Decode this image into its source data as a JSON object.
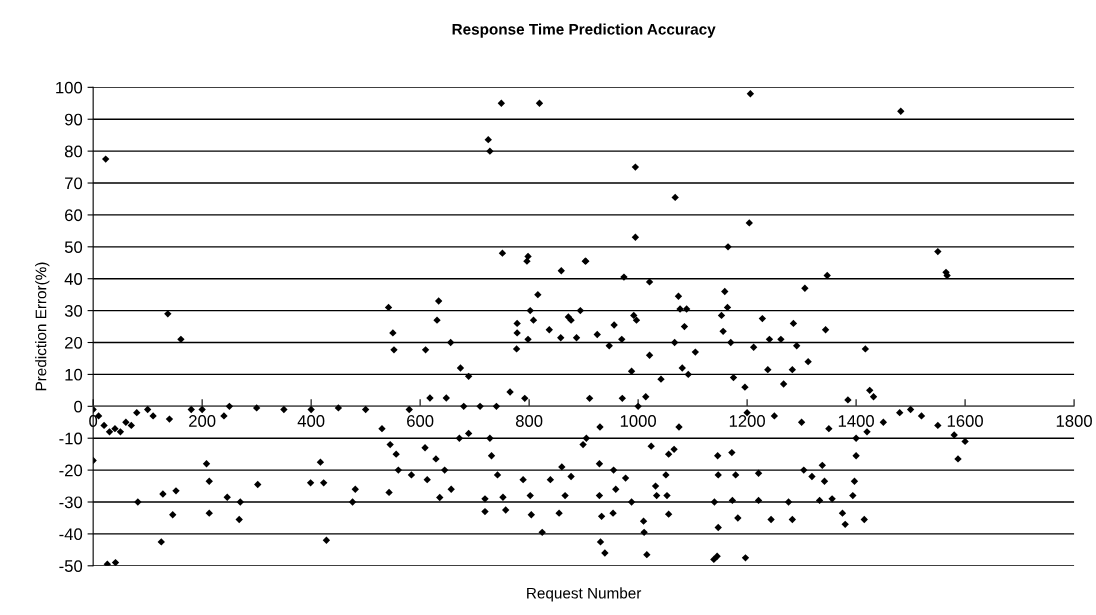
{
  "chart_data": {
    "type": "scatter",
    "title": "Response Time Prediction Accuracy",
    "xlabel": "Request Number",
    "ylabel": "Prediction Error(%)",
    "x": [
      0,
      0,
      10,
      20,
      23,
      26,
      30,
      40,
      41,
      50,
      60,
      70,
      80,
      82,
      100,
      110,
      125,
      128,
      137,
      140,
      146,
      152,
      161,
      180,
      200,
      208,
      213,
      213,
      240,
      246,
      250,
      268,
      270,
      300,
      302,
      350,
      399,
      400,
      417,
      423,
      428,
      450,
      476,
      481,
      500,
      530,
      542,
      543,
      545,
      550,
      552,
      556,
      560,
      580,
      584,
      609,
      610,
      613,
      618,
      629,
      631,
      634,
      636,
      645,
      648,
      656,
      657,
      672,
      674,
      680,
      689,
      689,
      710,
      719,
      719,
      725,
      728,
      728,
      731,
      740,
      742,
      749,
      751,
      752,
      757,
      765,
      777,
      778,
      778,
      789,
      792,
      796,
      798,
      798,
      802,
      802,
      804,
      808,
      816,
      819,
      824,
      837,
      839,
      855,
      858,
      859,
      860,
      866,
      872,
      877,
      877,
      887,
      894,
      899,
      903,
      904,
      905,
      911,
      925,
      929,
      929,
      930,
      931,
      933,
      939,
      947,
      954,
      955,
      956,
      959,
      970,
      971,
      974,
      977,
      988,
      988,
      992,
      995,
      995,
      997,
      1000,
      1010,
      1011,
      1014,
      1016,
      1021,
      1021,
      1024,
      1032,
      1034,
      1042,
      1051,
      1053,
      1056,
      1056,
      1066,
      1067,
      1068,
      1074,
      1075,
      1077,
      1081,
      1085,
      1089,
      1092,
      1105,
      1139,
      1140,
      1145,
      1146,
      1147,
      1147,
      1153,
      1156,
      1159,
      1164,
      1165,
      1170,
      1172,
      1173,
      1175,
      1179,
      1183,
      1196,
      1197,
      1200,
      1204,
      1206,
      1212,
      1221,
      1221,
      1228,
      1238,
      1241,
      1244,
      1250,
      1262,
      1267,
      1276,
      1283,
      1283,
      1285,
      1291,
      1300,
      1304,
      1306,
      1312,
      1319,
      1333,
      1338,
      1342,
      1344,
      1347,
      1350,
      1356,
      1375,
      1380,
      1385,
      1394,
      1397,
      1400,
      1400,
      1415,
      1417,
      1420,
      1425,
      1432,
      1450,
      1480,
      1482,
      1500,
      1520,
      1550,
      1550,
      1565,
      1567,
      1580,
      1587,
      1600
    ],
    "values": [
      -1,
      -17,
      -3,
      -6,
      77.5,
      -49.5,
      -8,
      -7,
      -49,
      -8,
      -5,
      -6,
      -2,
      -30,
      -1,
      -3,
      -42.5,
      -27.5,
      29,
      -4,
      -34,
      -26.5,
      21,
      -1,
      -1,
      -18,
      -23.5,
      -33.5,
      -3,
      -28.5,
      0,
      -35.5,
      -30,
      -0.5,
      -24.5,
      -1,
      -24,
      -1,
      -17.5,
      -24,
      -42,
      -0.5,
      -30,
      -26,
      -1,
      -7,
      31,
      -27,
      -12,
      23,
      17.7,
      -15,
      -20,
      -1,
      -21.5,
      -13,
      17.7,
      -23,
      2.6,
      -16.5,
      27,
      33,
      -28.6,
      -20,
      2.6,
      20,
      -26,
      -10,
      12,
      0,
      9.4,
      -8.5,
      0,
      -33,
      -29,
      83.6,
      80,
      -10,
      -15.5,
      0,
      -21.5,
      95,
      48,
      -28.5,
      -32.5,
      4.5,
      18,
      26,
      23,
      -23,
      2.5,
      45.5,
      47,
      21,
      30,
      -28,
      -34,
      27,
      35,
      95,
      -39.5,
      24,
      -23,
      -33.5,
      21.5,
      42.5,
      -19,
      -28,
      28,
      27,
      -22,
      21.5,
      30,
      -12,
      45.5,
      45.5,
      -10,
      2.5,
      22.5,
      -18,
      -28,
      -6.5,
      -42.5,
      -34.5,
      -46,
      19,
      -33.5,
      -20,
      25.5,
      -26,
      21,
      2.5,
      40.5,
      -22.5,
      11,
      -30,
      28.5,
      75,
      53,
      27,
      0,
      -36,
      -39.5,
      3,
      -46.5,
      16,
      39,
      -12.5,
      -25,
      -28,
      8.5,
      -21.5,
      -28,
      -15,
      -33.8,
      -13.5,
      20,
      65.5,
      34.5,
      -6.5,
      30.5,
      12,
      25,
      30.5,
      10,
      17,
      -48,
      -30,
      -47,
      -15.5,
      -21.5,
      -38,
      28.5,
      23.5,
      36,
      31,
      50,
      20,
      -14.5,
      -29.5,
      9,
      -21.5,
      -35,
      6,
      -47.5,
      -2,
      57.5,
      98,
      18.5,
      -21,
      -29.5,
      27.5,
      11.5,
      21,
      -35.5,
      -3,
      21,
      7,
      -30,
      -35.5,
      11.5,
      26,
      19,
      -5,
      -20,
      37,
      14,
      -22,
      -29.5,
      -18.5,
      -23.5,
      24,
      41,
      -7,
      -29,
      -33.5,
      -37,
      2,
      -28,
      -23.5,
      -15.5,
      -10,
      -35.5,
      18,
      -8,
      5,
      3,
      -5,
      -2,
      92.5,
      -1,
      -3,
      -6,
      48.5,
      42,
      41,
      -9,
      -16.5,
      -11
    ],
    "color": "#000000",
    "marker": "diamond",
    "grid": "y",
    "xlim": [
      0,
      1800
    ],
    "ylim": [
      -50,
      100
    ],
    "xticks": [
      0,
      200,
      400,
      600,
      800,
      1000,
      1200,
      1400,
      1600,
      1800
    ],
    "yticks": [
      -50,
      -40,
      -30,
      -20,
      -10,
      0,
      10,
      20,
      30,
      40,
      50,
      60,
      70,
      80,
      90,
      100
    ]
  }
}
